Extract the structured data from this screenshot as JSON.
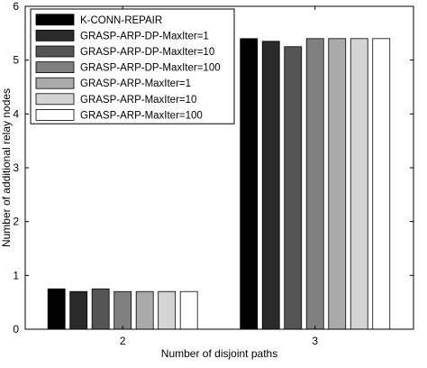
{
  "chart_data": {
    "type": "bar",
    "categories": [
      "2",
      "3"
    ],
    "xlabel": "Number of disjoint paths",
    "ylabel": "Number of additional relay nodes",
    "ylim": [
      0,
      6
    ],
    "yticks": [
      "0",
      "1",
      "2",
      "3",
      "4",
      "5",
      "6"
    ],
    "grid": false,
    "legend_position": "top-left",
    "series": [
      {
        "name": "K-CONN-REPAIR",
        "values": [
          0.75,
          5.4
        ],
        "color": "#000000"
      },
      {
        "name": "GRASP-ARP-DP-MaxIter=1",
        "values": [
          0.7,
          5.35
        ],
        "color": "#2a2a2a"
      },
      {
        "name": "GRASP-ARP-DP-MaxIter=10",
        "values": [
          0.75,
          5.25
        ],
        "color": "#555555"
      },
      {
        "name": "GRASP-ARP-DP-MaxIter=100",
        "values": [
          0.7,
          5.4
        ],
        "color": "#808080"
      },
      {
        "name": "GRASP-ARP-MaxIter=1",
        "values": [
          0.7,
          5.4
        ],
        "color": "#aaaaaa"
      },
      {
        "name": "GRASP-ARP-MaxIter=10",
        "values": [
          0.7,
          5.4
        ],
        "color": "#d4d4d4"
      },
      {
        "name": "GRASP-ARP-MaxIter=100",
        "values": [
          0.7,
          5.4
        ],
        "color": "#ffffff"
      }
    ]
  }
}
